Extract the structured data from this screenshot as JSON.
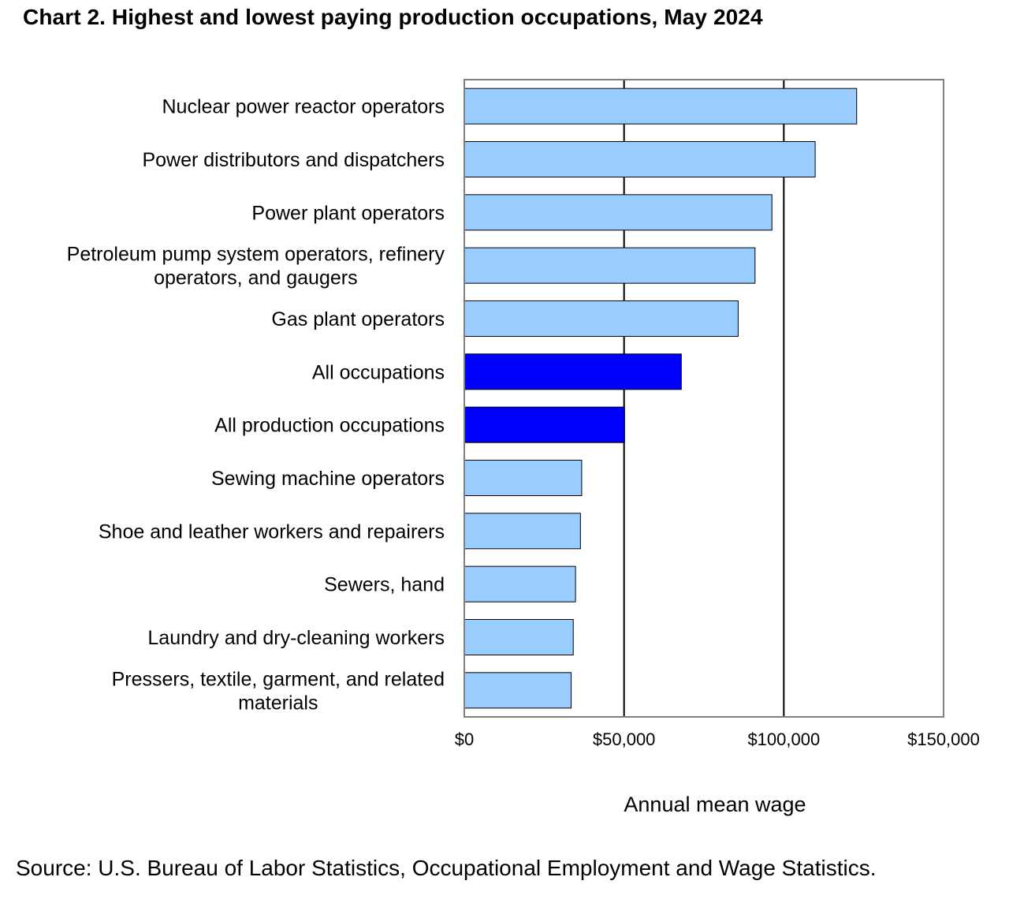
{
  "title": "Chart 2. Highest and lowest paying production occupations, May 2024",
  "source": "Source: U.S. Bureau of Labor Statistics, Occupational Employment and Wage Statistics.",
  "colors": {
    "occupation_bar": "#99ccff",
    "aggregate_bar": "#0000ff",
    "bar_outline": "#000000",
    "gridline": "#000000",
    "frame": "#7f7f7f"
  },
  "chart_data": {
    "type": "bar",
    "orientation": "horizontal",
    "title": "Chart 2. Highest and lowest paying production occupations, May 2024",
    "xlabel": "Annual mean wage",
    "ylabel": "",
    "xlim": [
      0,
      150000
    ],
    "x_ticks": [
      0,
      50000,
      100000,
      150000
    ],
    "x_tick_labels": [
      "$0",
      "$50,000",
      "$100,000",
      "$150,000"
    ],
    "grid": true,
    "legend": "none",
    "categories": [
      [
        "Nuclear power reactor operators"
      ],
      [
        "Power distributors and dispatchers"
      ],
      [
        "Power plant operators"
      ],
      [
        "Petroleum pump system operators, refinery",
        "operators, and gaugers"
      ],
      [
        "Gas plant operators"
      ],
      [
        "All occupations"
      ],
      [
        "All production occupations"
      ],
      [
        "Sewing machine operators"
      ],
      [
        "Shoe and leather workers and repairers"
      ],
      [
        "Sewers, hand"
      ],
      [
        "Laundry and dry-cleaning workers"
      ],
      [
        "Pressers, textile, garment, and related",
        "materials"
      ]
    ],
    "values": [
      122800,
      109810,
      96280,
      90990,
      85710,
      67920,
      50150,
      36730,
      36350,
      34810,
      34100,
      33450
    ],
    "highlight": [
      false,
      false,
      false,
      false,
      false,
      true,
      true,
      false,
      false,
      false,
      false,
      false
    ]
  }
}
